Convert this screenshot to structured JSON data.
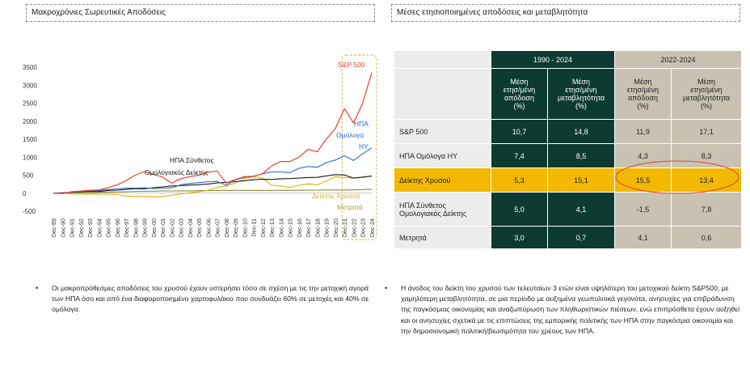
{
  "left_title": "Μακροχρόνιες Σωρευτικές Αποδόσεις",
  "right_title": "Μέσες ετησιοποιημένες αποδόσεις και μεταβλητότητα",
  "chart_data": {
    "type": "line",
    "title": "",
    "ylim": [
      -500,
      3500
    ],
    "y_ticks": [
      "3500",
      "3000",
      "2500",
      "2000",
      "1500",
      "1000",
      "500",
      "0",
      "-500"
    ],
    "x_ticks": [
      "Dec-89",
      "Dec-90",
      "Dec-91",
      "Dec-92",
      "Dec-93",
      "Dec-94",
      "Dec-95",
      "Dec-96",
      "Dec-97",
      "Dec-98",
      "Dec-99",
      "Dec-00",
      "Dec-01",
      "Dec-02",
      "Dec-03",
      "Dec-04",
      "Dec-05",
      "Dec-06",
      "Dec-07",
      "Dec-08",
      "Dec-09",
      "Dec-10",
      "Dec-11",
      "Dec-12",
      "Dec-13",
      "Dec-14",
      "Dec-15",
      "Dec-16",
      "Dec-17",
      "Dec-18",
      "Dec-19",
      "Dec-20",
      "Dec-21",
      "Dec-22",
      "Dec-23",
      "Dec-24"
    ],
    "series": [
      {
        "name": "S&P 500",
        "color": "#e8432d",
        "values": [
          0,
          -10,
          40,
          60,
          80,
          90,
          150,
          230,
          350,
          500,
          600,
          520,
          450,
          280,
          400,
          460,
          500,
          580,
          620,
          280,
          380,
          460,
          470,
          540,
          760,
          880,
          880,
          1000,
          1220,
          1150,
          1500,
          1800,
          2350,
          1950,
          2500,
          3350
        ]
      },
      {
        "name": "ΗΠΑ Ομόλογα HY",
        "color": "#2e6ac8",
        "values": [
          0,
          -5,
          30,
          50,
          70,
          70,
          100,
          120,
          140,
          140,
          150,
          130,
          140,
          150,
          230,
          270,
          290,
          320,
          330,
          220,
          370,
          440,
          470,
          540,
          590,
          590,
          570,
          690,
          740,
          720,
          850,
          920,
          1040,
          910,
          1090,
          1260
        ]
      },
      {
        "name": "ΗΠΑ Σύνθετος Ομολογιακός Δείκτης",
        "color": "#1a1a1a",
        "values": [
          0,
          10,
          25,
          40,
          50,
          45,
          75,
          85,
          105,
          125,
          120,
          150,
          175,
          200,
          210,
          225,
          235,
          255,
          285,
          300,
          320,
          345,
          375,
          385,
          380,
          400,
          405,
          420,
          435,
          440,
          480,
          515,
          505,
          420,
          445,
          475
        ]
      },
      {
        "name": "Δείκτης Χρυσού",
        "color": "#e3b100",
        "values": [
          0,
          -5,
          -20,
          -30,
          -25,
          -25,
          -25,
          -40,
          -80,
          -90,
          -90,
          -100,
          -90,
          -60,
          -20,
          10,
          40,
          80,
          160,
          200,
          280,
          400,
          460,
          420,
          220,
          200,
          160,
          220,
          260,
          230,
          340,
          460,
          430,
          420,
          440,
          480
        ]
      },
      {
        "name": "Μετρητά",
        "color": "#8a8a3a",
        "values": [
          0,
          5,
          10,
          15,
          20,
          25,
          30,
          35,
          40,
          45,
          50,
          55,
          60,
          62,
          63,
          65,
          68,
          72,
          76,
          78,
          78,
          78,
          78,
          78,
          78,
          78,
          79,
          80,
          82,
          85,
          88,
          88,
          88,
          92,
          100,
          110
        ]
      }
    ],
    "labels": {
      "sp500": "S&P 500",
      "hy": [
        "ΗΠΑ",
        "Ομόλογα",
        "HY"
      ],
      "agg": [
        "ΗΠΑ Σύνθετος",
        "Ομολογιακός Δείκτης"
      ],
      "gold": "Δείκτης Χρυσού",
      "cash": "Μετρητά"
    }
  },
  "table": {
    "group1": "1990 - 2024",
    "group2": "2022-2024",
    "col_headers": [
      [
        "Μέση",
        "ετησ/μένη",
        "απόδοση",
        "(%)"
      ],
      [
        "Μέση",
        "ετησ/μένη",
        "μεταβλητότητα",
        "(%)"
      ],
      [
        "Μέση",
        "ετησ/μένη",
        "απόδοση",
        "(%)"
      ],
      [
        "Μέση",
        "ετησ/μένη",
        "μεταβλητότητα",
        "(%)"
      ]
    ],
    "rows": [
      {
        "label": "S&P 500",
        "values": [
          "10,7",
          "14,8",
          "11,9",
          "17,1"
        ]
      },
      {
        "label": "ΗΠΑ Ομόλογα HY",
        "values": [
          "7,4",
          "8,5",
          "4,3",
          "8,3"
        ]
      },
      {
        "label": "Δείκτης Χρυσού",
        "values": [
          "5,3",
          "15,1",
          "15,5",
          "13,4"
        ],
        "highlight": true
      },
      {
        "label": "ΗΠΑ Σύνθετος Ομολογιακός Δείκτης",
        "values": [
          "5,0",
          "4,1",
          "-1,5",
          "7,8"
        ]
      },
      {
        "label": "Μετρητά",
        "values": [
          "3,0",
          "0,7",
          "4,1",
          "0,6"
        ]
      }
    ]
  },
  "bullets": {
    "left": "Οι μακροπρόθεσμες αποδόσεις του χρυσού έχουν υστερήσει τόσο σε σχέση με τις την μετοχική αγορά των ΗΠΑ όσο και από ένα διαφοροποιημένο χαρτοφυλάκιο που συνδυάζει 60% σε μετοχές και 40% σε ομόλογα.",
    "right": "Η άνοδος του δείκτη του χρυσού των τελευταίων 3 ετών είναι υψηλότερη του μετοχικού δείκτη S&P500, με χαμηλότερη μεταβλητότητα, σε μια περίοδο με αυξημένα γεωπολιτικά γεγονότα, ανησυχίες για επιβράδυνση της παγκόσμιας οικονομίας και αναζωπύρωση των πληθωριστικών πιέσεων, ενώ επιπρόσθετα έχουν αυξηθεί και οι ανησυχίες σχετικά με τις επιπτώσεις της εμπορικής πολιτικής των ΗΠΑ στην παγκόσμια οικονομία και την δημοσιονομική πολιτική/βιωσιμότητα του χρέους των ΗΠΑ."
  }
}
